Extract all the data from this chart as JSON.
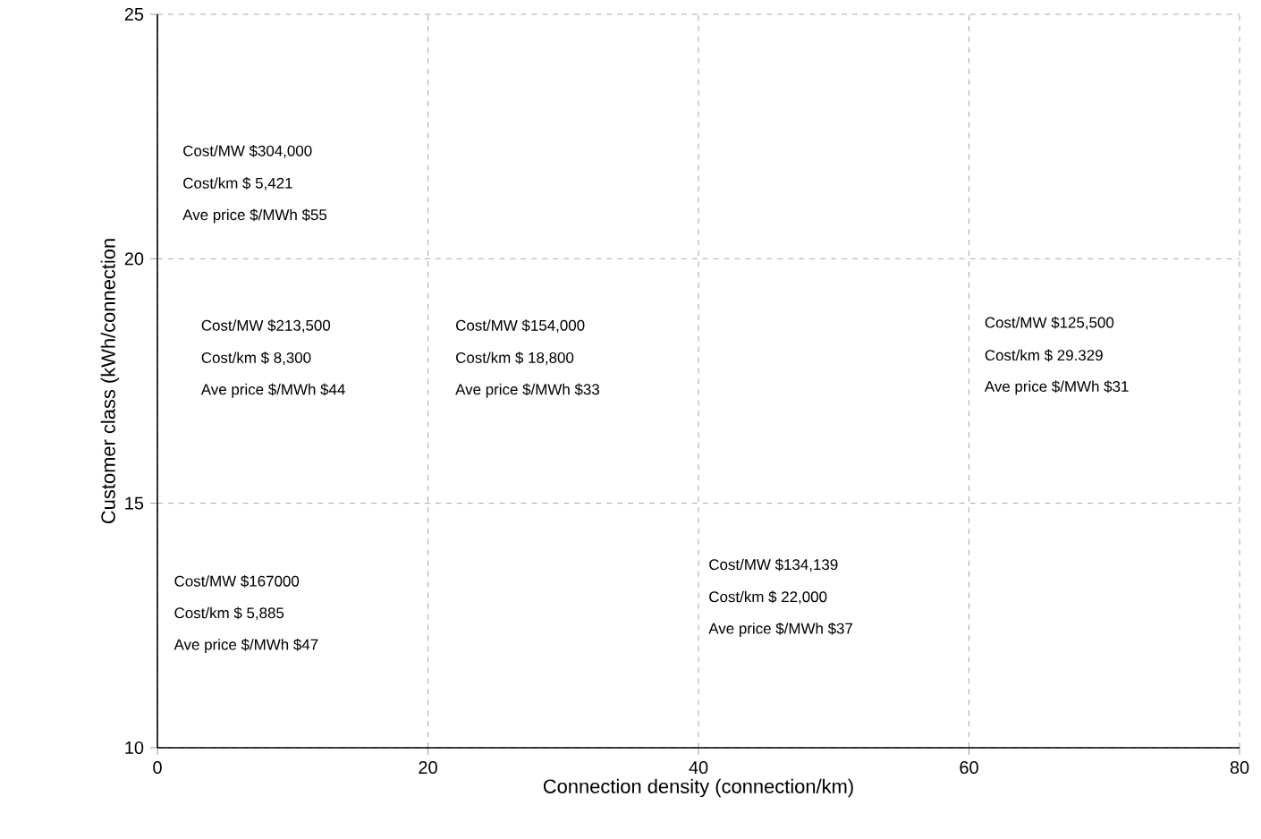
{
  "chart_data": {
    "type": "scatter",
    "xlabel": "Connection density (connection/km)",
    "ylabel": "Customer class (kWh/connection",
    "xlim": [
      0,
      80
    ],
    "ylim": [
      10,
      25
    ],
    "xticks": [
      0,
      20,
      40,
      60,
      80
    ],
    "yticks": [
      10,
      15,
      20,
      25
    ],
    "grid": true,
    "annotations": [
      "Cost/MW $304,000",
      "Cost/km   $ 5,421",
      "Ave price $/MWh $55",
      "Cost/MW $213,500",
      "Cost/km    $ 8,300",
      "Ave price $/MWh $44",
      "Cost/MW $154,000",
      "Cost/km    $ 18,800",
      "Ave price $/MWh $33",
      "Cost/MW $125,500",
      "Cost/km    $ 29.329",
      "Ave price $/MWh $31",
      "Cost/MW $167000",
      "Cost/km    $ 5,885",
      "Ave price $/MWh $47",
      "Cost/MW $134,139",
      "Cost/km    $ 22,000",
      "Ave price $/MWh $37"
    ]
  }
}
